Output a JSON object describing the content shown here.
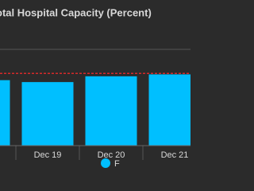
{
  "chart_data": {
    "type": "bar",
    "title": "otal Hospital Capacity (Percent)",
    "categories": [
      null,
      "Dec 19",
      "Dec 20",
      "Dec 21"
    ],
    "series": [
      {
        "name": "F",
        "color": "#00bfff",
        "values": [
          68,
          66,
          72,
          74
        ]
      }
    ],
    "ylim": [
      0,
      100
    ],
    "threshold": {
      "value": 75,
      "color": "#d42a2a"
    }
  }
}
